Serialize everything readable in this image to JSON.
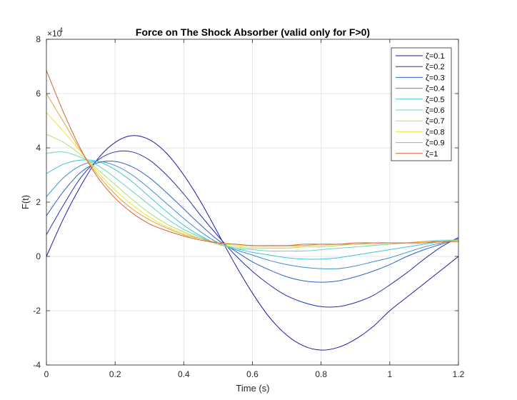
{
  "chart_data": {
    "type": "line",
    "title": "Force on The Shock Absorber (valid only for F>0)",
    "xlabel": "Time (s)",
    "ylabel": "F(t)",
    "y_exponent_label": "×10",
    "y_exponent_power": "4",
    "xlim": [
      0,
      1.2
    ],
    "ylim": [
      -4,
      8
    ],
    "xticks": [
      0,
      0.2,
      0.4,
      0.6,
      0.8,
      1,
      1.2
    ],
    "xtick_labels": [
      "0",
      "0.2",
      "0.4",
      "0.6",
      "0.8",
      "1",
      "1.2"
    ],
    "yticks": [
      -4,
      -2,
      0,
      2,
      4,
      6,
      8
    ],
    "ytick_labels": [
      "-4",
      "-2",
      "0",
      "2",
      "4",
      "6",
      "8"
    ],
    "grid": true,
    "legend_position": "top-right",
    "x": [
      0,
      0.05,
      0.1,
      0.15,
      0.2,
      0.25,
      0.3,
      0.35,
      0.4,
      0.45,
      0.5,
      0.55,
      0.6,
      0.65,
      0.7,
      0.75,
      0.8,
      0.85,
      0.9,
      0.95,
      1.0,
      1.05,
      1.1,
      1.15,
      1.2
    ],
    "series": [
      {
        "name": "ζ=0.1",
        "color": "#1a1aa6",
        "values": [
          0,
          1.4,
          2.6,
          3.6,
          4.2,
          4.45,
          4.3,
          3.8,
          3.0,
          2.0,
          0.85,
          -0.3,
          -1.35,
          -2.25,
          -2.9,
          -3.3,
          -3.45,
          -3.35,
          -3.05,
          -2.6,
          -2.0,
          -1.5,
          -1.0,
          -0.5,
          0
        ]
      },
      {
        "name": "ζ=0.2",
        "color": "#2030b0",
        "values": [
          0.8,
          1.9,
          2.9,
          3.55,
          3.85,
          3.85,
          3.55,
          3.0,
          2.3,
          1.5,
          0.75,
          0.05,
          -0.55,
          -1.05,
          -1.45,
          -1.7,
          -1.85,
          -1.85,
          -1.7,
          -1.45,
          -1.05,
          -0.6,
          -0.1,
          0.35,
          0.7
        ]
      },
      {
        "name": "ζ=0.3",
        "color": "#2f62c4",
        "values": [
          1.5,
          2.4,
          3.1,
          3.45,
          3.5,
          3.3,
          2.9,
          2.35,
          1.75,
          1.15,
          0.6,
          0.2,
          -0.2,
          -0.5,
          -0.75,
          -0.9,
          -0.95,
          -0.9,
          -0.75,
          -0.55,
          -0.3,
          0.0,
          0.25,
          0.45,
          0.65
        ]
      },
      {
        "name": "ζ=0.4",
        "color": "#3a8fd6",
        "values": [
          2.2,
          2.9,
          3.35,
          3.5,
          3.35,
          3.0,
          2.5,
          1.95,
          1.4,
          0.9,
          0.5,
          0.25,
          0.05,
          -0.15,
          -0.3,
          -0.4,
          -0.45,
          -0.45,
          -0.35,
          -0.2,
          -0.05,
          0.15,
          0.35,
          0.5,
          0.65
        ]
      },
      {
        "name": "ζ=0.5",
        "color": "#3fc3d8",
        "values": [
          3.05,
          3.4,
          3.55,
          3.5,
          3.2,
          2.75,
          2.2,
          1.65,
          1.15,
          0.75,
          0.45,
          0.3,
          0.15,
          0.05,
          -0.05,
          -0.1,
          -0.1,
          -0.05,
          0.05,
          0.15,
          0.25,
          0.35,
          0.45,
          0.55,
          0.6
        ]
      },
      {
        "name": "ζ=0.6",
        "color": "#6cd4b8",
        "values": [
          3.8,
          3.85,
          3.65,
          3.35,
          2.9,
          2.4,
          1.9,
          1.4,
          1.0,
          0.7,
          0.45,
          0.3,
          0.25,
          0.2,
          0.2,
          0.2,
          0.25,
          0.3,
          0.35,
          0.4,
          0.45,
          0.5,
          0.55,
          0.6,
          0.6
        ]
      },
      {
        "name": "ζ=0.7",
        "color": "#a8e07a",
        "values": [
          4.5,
          4.2,
          3.75,
          3.2,
          2.65,
          2.1,
          1.6,
          1.2,
          0.9,
          0.65,
          0.45,
          0.35,
          0.3,
          0.3,
          0.3,
          0.35,
          0.35,
          0.4,
          0.45,
          0.45,
          0.5,
          0.5,
          0.55,
          0.55,
          0.6
        ]
      },
      {
        "name": "ζ=0.8",
        "color": "#e8e63a",
        "values": [
          5.3,
          4.6,
          3.85,
          3.1,
          2.45,
          1.9,
          1.45,
          1.1,
          0.85,
          0.65,
          0.5,
          0.4,
          0.35,
          0.35,
          0.35,
          0.4,
          0.4,
          0.45,
          0.45,
          0.5,
          0.5,
          0.5,
          0.55,
          0.55,
          0.55
        ]
      },
      {
        "name": "ζ=0.9",
        "color": "#e2a536",
        "values": [
          6.0,
          4.95,
          3.9,
          3.0,
          2.3,
          1.75,
          1.35,
          1.05,
          0.8,
          0.65,
          0.5,
          0.45,
          0.4,
          0.4,
          0.4,
          0.4,
          0.45,
          0.45,
          0.45,
          0.5,
          0.5,
          0.5,
          0.55,
          0.55,
          0.55
        ]
      },
      {
        "name": "ζ=1",
        "color": "#d9603a",
        "values": [
          6.85,
          5.3,
          3.95,
          2.9,
          2.15,
          1.6,
          1.2,
          0.95,
          0.75,
          0.6,
          0.5,
          0.45,
          0.4,
          0.4,
          0.4,
          0.45,
          0.45,
          0.45,
          0.5,
          0.5,
          0.5,
          0.5,
          0.5,
          0.55,
          0.55
        ]
      }
    ]
  }
}
